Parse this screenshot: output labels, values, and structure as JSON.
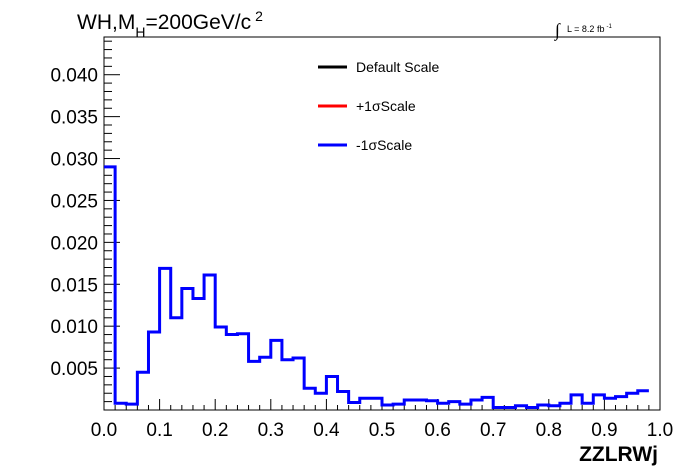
{
  "chart_data": {
    "type": "histogram",
    "title": {
      "main": "WH,M",
      "sub": "H",
      "rest": "=200GeV/c",
      "sup": "2"
    },
    "lumi": {
      "integral": "∫",
      "text": "L = 8.2 fb",
      "sup": "-1"
    },
    "xlabel": "ZZLRWj",
    "ylabel": "",
    "xlim": [
      0.0,
      1.0
    ],
    "ylim": [
      0.0,
      0.0445
    ],
    "x_ticks": [
      0.0,
      0.1,
      0.2,
      0.3,
      0.4,
      0.5,
      0.6,
      0.7,
      0.8,
      0.9,
      1.0
    ],
    "x_tick_labels": [
      "0.0",
      "0.1",
      "0.2",
      "0.3",
      "0.4",
      "0.5",
      "0.6",
      "0.7",
      "0.8",
      "0.9",
      "1.0"
    ],
    "y_ticks": [
      0.005,
      0.01,
      0.015,
      0.02,
      0.025,
      0.03,
      0.035,
      0.04
    ],
    "y_tick_labels": [
      "0.005",
      "0.010",
      "0.015",
      "0.020",
      "0.025",
      "0.030",
      "0.035",
      "0.040"
    ],
    "bin_width": 0.02,
    "legend_position": "top-center",
    "series": [
      {
        "name": "Default Scale",
        "color": "#000000",
        "values": []
      },
      {
        "name": "+1σScale",
        "color": "#ff0000",
        "values": []
      },
      {
        "name": "-1σScale",
        "color": "#0000ff",
        "values": [
          0.029,
          0.0008,
          0.0007,
          0.0045,
          0.0093,
          0.0169,
          0.011,
          0.0145,
          0.0133,
          0.0161,
          0.0099,
          0.009,
          0.0091,
          0.0058,
          0.0063,
          0.0083,
          0.006,
          0.0062,
          0.0026,
          0.002,
          0.004,
          0.0022,
          0.0009,
          0.0014,
          0.0014,
          0.0006,
          0.0007,
          0.0012,
          0.0012,
          0.0011,
          0.0008,
          0.001,
          0.0007,
          0.0012,
          0.0015,
          0.0003,
          0.0003,
          0.0005,
          0.0003,
          0.0006,
          0.0005,
          0.0008,
          0.0018,
          0.0008,
          0.0018,
          0.0014,
          0.0016,
          0.002,
          0.0023
        ]
      }
    ]
  }
}
